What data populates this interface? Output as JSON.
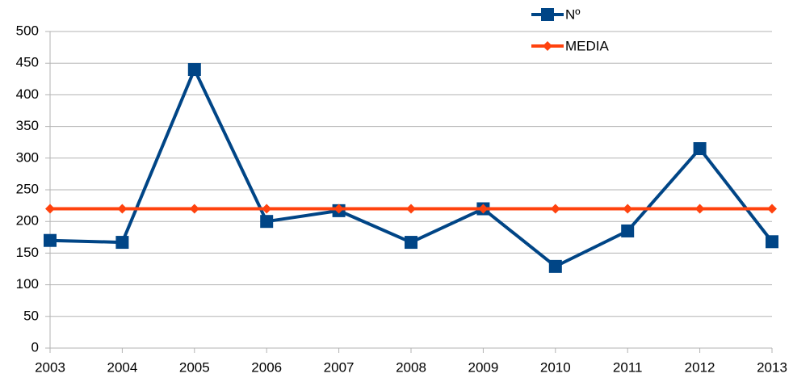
{
  "chart_data": {
    "type": "line",
    "categories": [
      "2003",
      "2004",
      "2005",
      "2006",
      "2007",
      "2008",
      "2009",
      "2010",
      "2011",
      "2012",
      "2013"
    ],
    "series": [
      {
        "name": "Nº",
        "color": "#004586",
        "marker": "square",
        "values": [
          170,
          167,
          440,
          200,
          217,
          167,
          220,
          129,
          185,
          315,
          168
        ]
      },
      {
        "name": "MEDIA",
        "color": "#ff420e",
        "marker": "diamond",
        "values": [
          220,
          220,
          220,
          220,
          220,
          220,
          220,
          220,
          220,
          220,
          220
        ]
      }
    ],
    "ylim": [
      0,
      500
    ],
    "yticks": [
      0,
      50,
      100,
      150,
      200,
      250,
      300,
      350,
      400,
      450,
      500
    ],
    "grid": true,
    "legend": "top-right"
  }
}
